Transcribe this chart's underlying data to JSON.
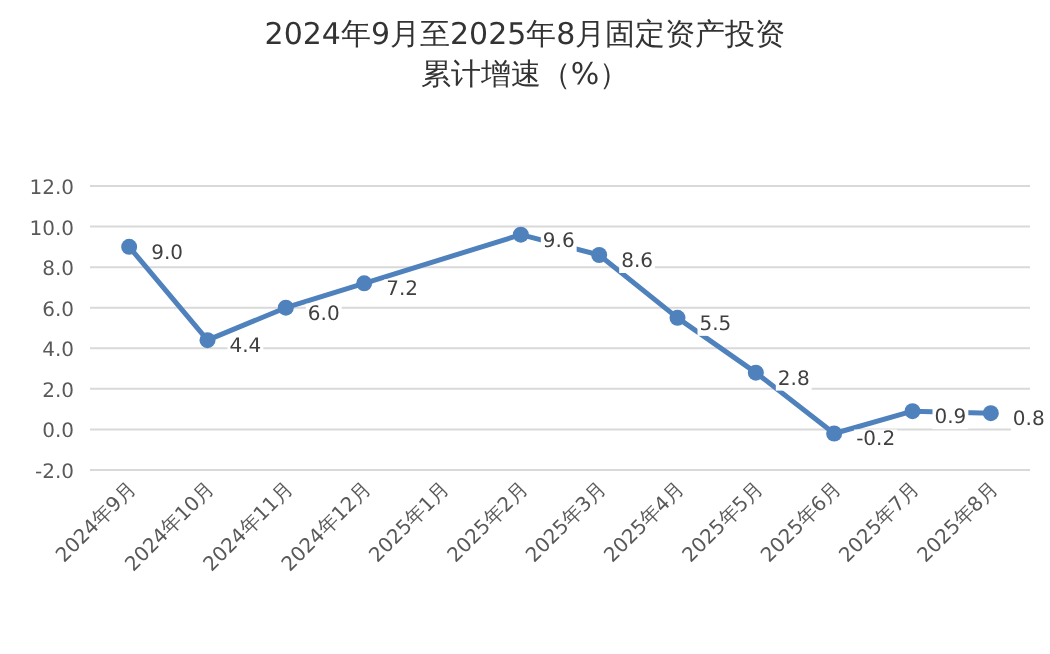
{
  "chart_data": {
    "type": "line",
    "title": "2024年9月至2025年8月固定资产投资",
    "subtitle": "累计增速（%）",
    "categories": [
      "2024年9月",
      "2024年10月",
      "2024年11月",
      "2024年12月",
      "2025年1月",
      "2025年2月",
      "2025年3月",
      "2025年4月",
      "2025年5月",
      "2025年6月",
      "2025年7月",
      "2025年8月"
    ],
    "series": [
      {
        "color": "#4f81bd",
        "values": [
          9.0,
          4.4,
          6.0,
          7.2,
          null,
          9.6,
          8.6,
          5.5,
          2.8,
          -0.2,
          0.9,
          0.8
        ],
        "value_labels": [
          "9.0",
          "4.4",
          "6.0",
          "7.2",
          null,
          "9.6",
          "8.6",
          "5.5",
          "2.8",
          "-0.2",
          "0.9",
          "0.8"
        ]
      }
    ],
    "ylim": [
      -2,
      12
    ],
    "yticks": [
      {
        "value": -2,
        "label": "-2.0"
      },
      {
        "value": 0,
        "label": "0.0"
      },
      {
        "value": 2,
        "label": "2.0"
      },
      {
        "value": 4,
        "label": "4.0"
      },
      {
        "value": 6,
        "label": "6.0"
      },
      {
        "value": 8,
        "label": "8.0"
      },
      {
        "value": 10,
        "label": "10.0"
      },
      {
        "value": 12,
        "label": "12.0"
      }
    ],
    "grid": "y",
    "marker": "circle",
    "line_style": "solid"
  }
}
